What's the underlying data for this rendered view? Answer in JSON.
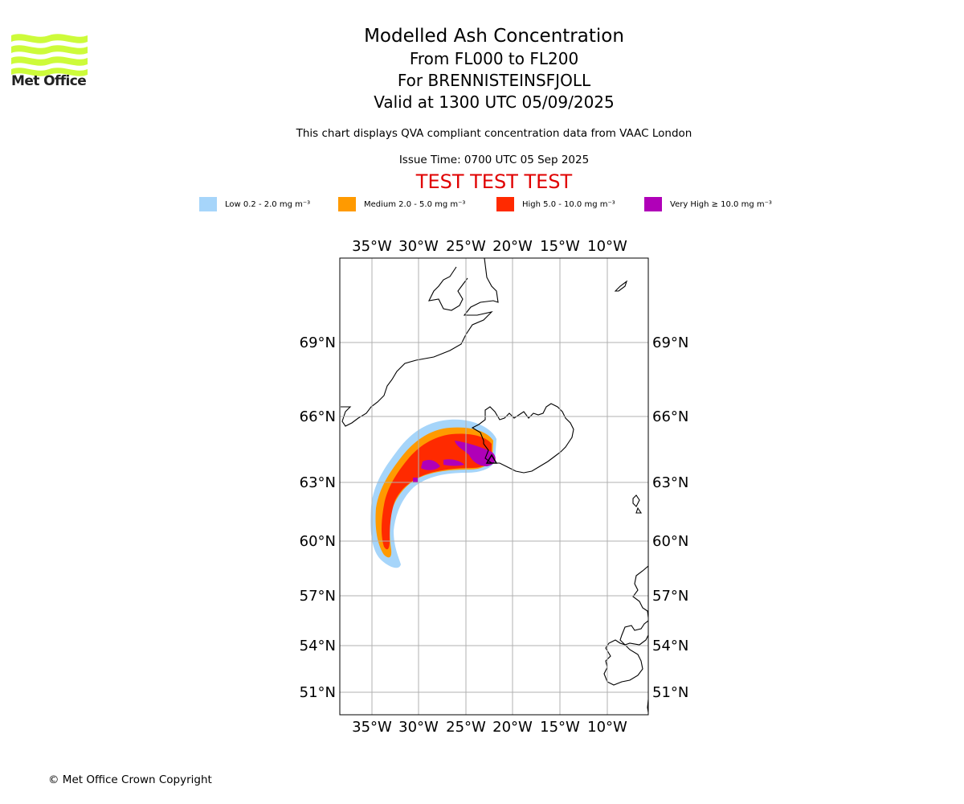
{
  "header": {
    "org_name": "Met Office",
    "title_lines": [
      "Modelled Ash Concentration",
      "From FL000 to FL200",
      "For BRENNISTEINSFJOLL",
      "Valid at 1300 UTC 05/09/2025"
    ],
    "disclaimer": "This chart displays QVA compliant concentration data from VAAC London",
    "issue_time": "Issue Time: 0700 UTC 05 Sep 2025",
    "test_banner": "TEST TEST TEST"
  },
  "legend": [
    {
      "label": "Low 0.2 - 2.0 mg m⁻³",
      "color": "#a6d5fa"
    },
    {
      "label": "Medium 2.0 - 5.0 mg m⁻³",
      "color": "#ff9a00"
    },
    {
      "label": "High 5.0 - 10.0 mg m⁻³",
      "color": "#ff2a00"
    },
    {
      "label": "Very High ≥ 10.0 mg m⁻³",
      "color": "#b000b8"
    }
  ],
  "map": {
    "lon_labels": [
      "35°W",
      "30°W",
      "25°W",
      "20°W",
      "15°W",
      "10°W"
    ],
    "lat_labels": [
      "69°N",
      "66°N",
      "63°N",
      "60°N",
      "57°N",
      "54°N",
      "51°N"
    ],
    "colors": {
      "low": "#a6d5fa",
      "medium": "#ff9a00",
      "high": "#ff2a00",
      "very_high": "#b000b8",
      "grid": "#b0b0b0",
      "coast": "#000000"
    }
  },
  "footer": {
    "copyright": "© Met Office Crown Copyright"
  }
}
